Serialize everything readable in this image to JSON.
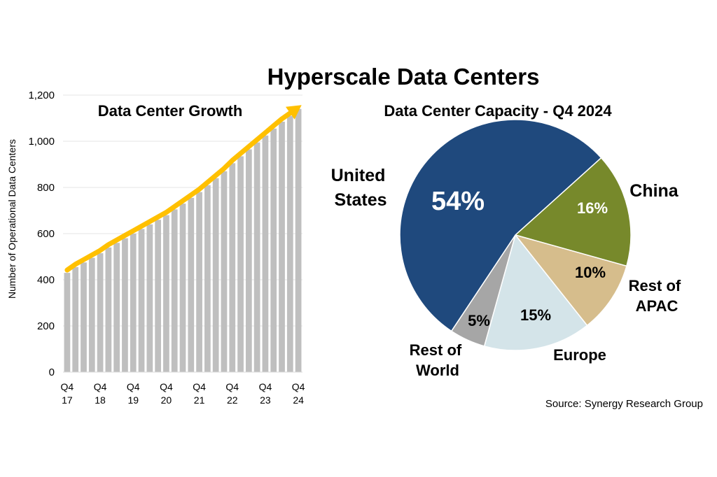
{
  "main_title": "Hyperscale Data Centers",
  "source": "Source: Synergy Research Group",
  "chart_data": [
    {
      "type": "bar",
      "title": "Data Center Growth",
      "ylabel": "Number  of Operational Data Centers",
      "xlabel": "",
      "ylim": [
        0,
        1200
      ],
      "yticks": [
        "0",
        "200",
        "400",
        "600",
        "800",
        "1,000",
        "1,200"
      ],
      "ytick_values": [
        0,
        200,
        400,
        600,
        800,
        1000,
        1200
      ],
      "x_tick_labels": [
        {
          "q": "Q4",
          "y": "17"
        },
        {
          "q": "Q4",
          "y": "18"
        },
        {
          "q": "Q4",
          "y": "19"
        },
        {
          "q": "Q4",
          "y": "20"
        },
        {
          "q": "Q4",
          "y": "21"
        },
        {
          "q": "Q4",
          "y": "22"
        },
        {
          "q": "Q4",
          "y": "23"
        },
        {
          "q": "Q4",
          "y": "24"
        }
      ],
      "categories": [
        "Q4 17",
        "Q1 18",
        "Q2 18",
        "Q3 18",
        "Q4 18",
        "Q1 19",
        "Q2 19",
        "Q3 19",
        "Q4 19",
        "Q1 20",
        "Q2 20",
        "Q3 20",
        "Q4 20",
        "Q1 21",
        "Q2 21",
        "Q3 21",
        "Q4 21",
        "Q1 22",
        "Q2 22",
        "Q3 22",
        "Q4 22",
        "Q1 23",
        "Q2 23",
        "Q3 23",
        "Q4 23",
        "Q1 24",
        "Q2 24",
        "Q3 24",
        "Q4 24"
      ],
      "values": [
        430,
        455,
        475,
        495,
        515,
        540,
        560,
        580,
        600,
        620,
        640,
        660,
        680,
        705,
        730,
        755,
        780,
        810,
        840,
        870,
        905,
        935,
        965,
        995,
        1025,
        1055,
        1085,
        1110,
        1140
      ],
      "bar_color": "#bfbfbf",
      "trend_arrow_color": "#ffc000",
      "grid": true
    },
    {
      "type": "pie",
      "title": "Data Center Capacity - Q4 2024",
      "slices": [
        {
          "label": "United States",
          "label_lines": [
            "United",
            "States"
          ],
          "value": 54,
          "pct_text": "54%",
          "color": "#1f497d",
          "pct_color": "#ffffff"
        },
        {
          "label": "China",
          "label_lines": [
            "China"
          ],
          "value": 16,
          "pct_text": "16%",
          "color": "#77892b",
          "pct_color": "#ffffff"
        },
        {
          "label": "Rest of APAC",
          "label_lines": [
            "Rest of",
            "APAC"
          ],
          "value": 10,
          "pct_text": "10%",
          "color": "#d6bd8c",
          "pct_color": "#000000"
        },
        {
          "label": "Europe",
          "label_lines": [
            "Europe"
          ],
          "value": 15,
          "pct_text": "15%",
          "color": "#d4e4e9",
          "pct_color": "#000000"
        },
        {
          "label": "Rest of World",
          "label_lines": [
            "Rest of",
            "World"
          ],
          "value": 5,
          "pct_text": "5%",
          "color": "#a6a6a6",
          "pct_color": "#000000"
        }
      ]
    }
  ]
}
